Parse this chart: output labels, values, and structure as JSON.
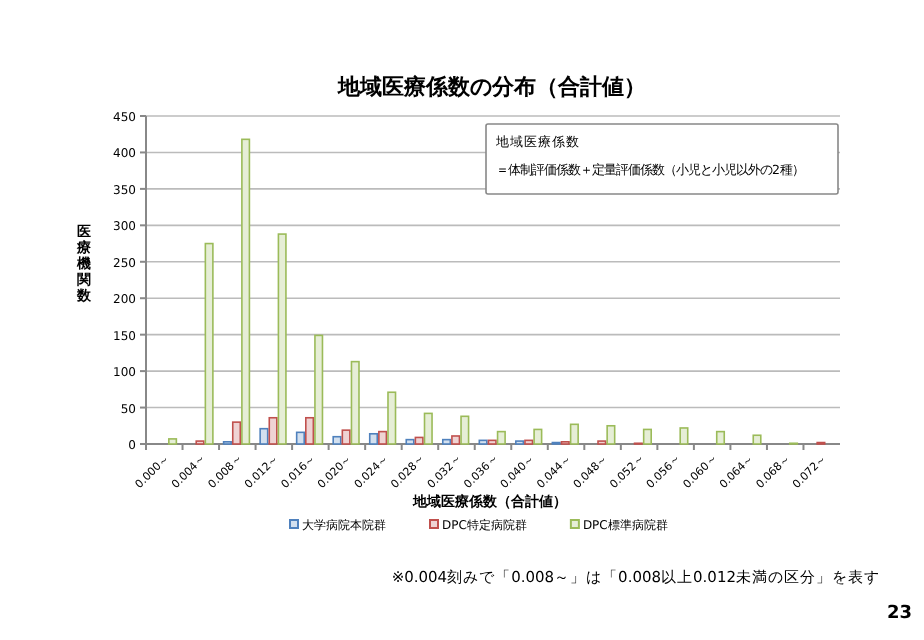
{
  "chart_data": {
    "type": "bar",
    "title": "地域医療係数の分布（合計値）",
    "xlabel": "地域医療係数（合計値）",
    "ylabel": "医療機関数",
    "categories": [
      "0.000～",
      "0.004～",
      "0.008～",
      "0.012～",
      "0.016～",
      "0.020～",
      "0.024～",
      "0.028～",
      "0.032～",
      "0.036～",
      "0.040～",
      "0.044～",
      "0.048～",
      "0.052～",
      "0.056～",
      "0.060～",
      "0.064～",
      "0.068～",
      "0.072～"
    ],
    "series": [
      {
        "name": "大学病院本院群",
        "color": "#4f81bd",
        "values": [
          0,
          0,
          3,
          21,
          16,
          10,
          14,
          6,
          6,
          5,
          4,
          2,
          0,
          0,
          0,
          0,
          0,
          0,
          0
        ]
      },
      {
        "name": "DPC特定病院群",
        "color": "#c0504d",
        "values": [
          0,
          4,
          30,
          36,
          36,
          19,
          17,
          9,
          11,
          5,
          5,
          3,
          4,
          1,
          0,
          0,
          0,
          0,
          2
        ]
      },
      {
        "name": "DPC標準病院群",
        "color": "#9bbb59",
        "values": [
          7,
          275,
          418,
          288,
          149,
          113,
          71,
          42,
          38,
          17,
          20,
          27,
          25,
          20,
          22,
          17,
          12,
          1,
          0
        ]
      }
    ],
    "ylim": [
      0,
      450
    ],
    "yticks": [
      0,
      50,
      100,
      150,
      200,
      250,
      300,
      350,
      400,
      450
    ],
    "grid": "y",
    "legend": "bottom",
    "annotations": [
      "地域医療係数",
      "＝体制評価係数＋定量評価係数（小児と小児以外の2種）",
      "※0.004刻みで「0.008～」は「0.008以上0.012未満の区分」を表す",
      "23"
    ]
  }
}
